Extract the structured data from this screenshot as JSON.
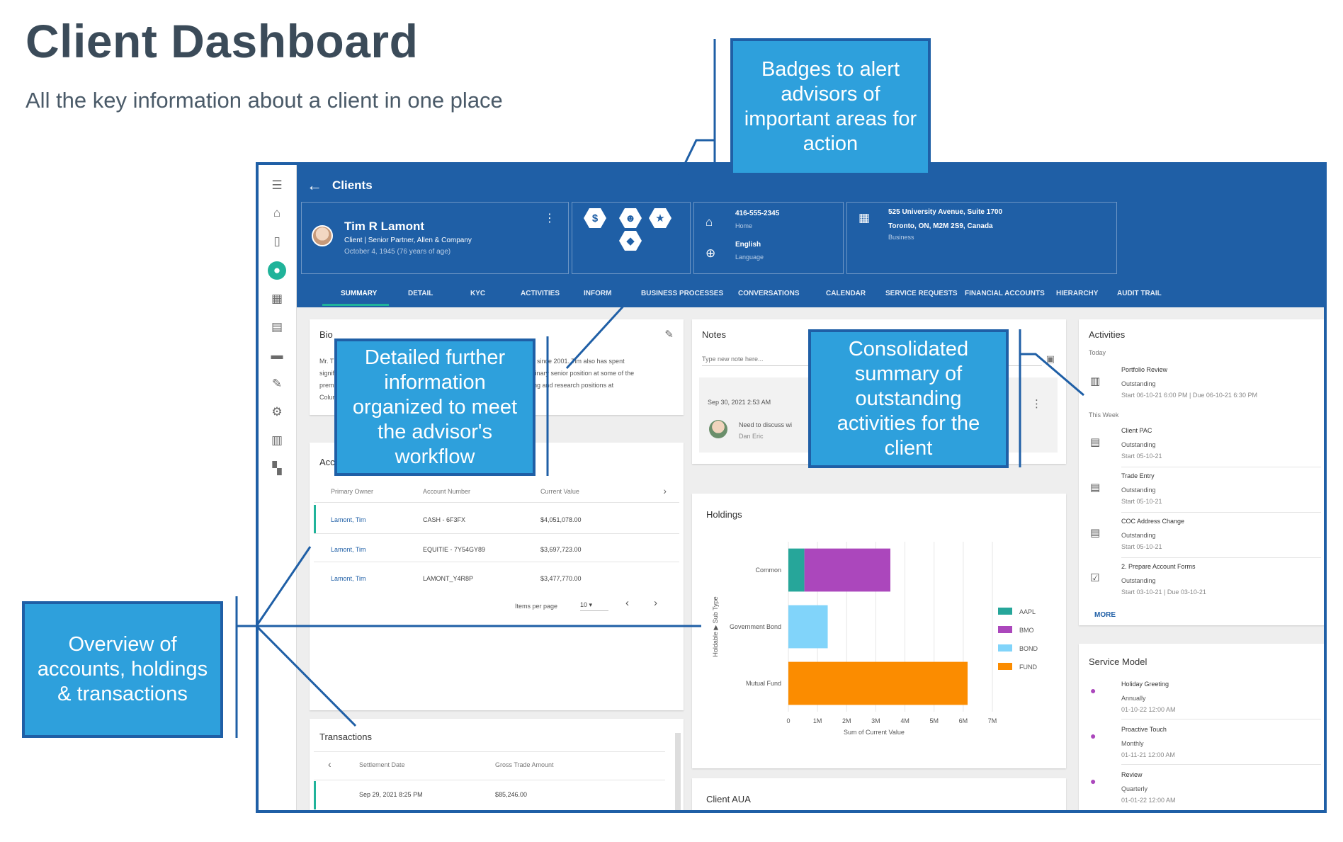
{
  "page": {
    "title": "Client Dashboard",
    "subtitle": "All the key information about a client in one place"
  },
  "app": {
    "back_label": "Clients",
    "rail_icons": [
      "menu-icon",
      "home-icon",
      "devices-icon",
      "client-icon",
      "calendar-icon",
      "clipboard-icon",
      "folder-icon",
      "wrench-icon",
      "gear-icon",
      "report-icon",
      "dashboard-icon"
    ],
    "client": {
      "name": "Tim R Lamont",
      "role": "Client | Senior Partner, Allen & Company",
      "dob": "October 4, 1945 (76 years of age)"
    },
    "badges": [
      "dollar-badge-icon",
      "advisor-badge-icon",
      "star-badge-icon",
      "shield-badge-icon"
    ],
    "contact": {
      "phone": "416-555-2345",
      "phone_type": "Home",
      "language": "English",
      "language_label": "Language"
    },
    "address": {
      "line1": "525 University Avenue, Suite 1700",
      "line2": "Toronto, ON, M2M 2S9, Canada",
      "type": "Business"
    },
    "tabs": [
      "SUMMARY",
      "DETAIL",
      "KYC",
      "ACTIVITIES",
      "INFORM",
      "BUSINESS PROCESSES",
      "CONVERSATIONS",
      "CALENDAR",
      "SERVICE REQUESTS",
      "FINANCIAL ACCOUNTS",
      "HIERARCHY",
      "AUDIT TRAIL"
    ],
    "bio": {
      "title": "Bio",
      "line1_start": "Mr. T",
      "line1_end": "y since 2001. Tim also has spent",
      "line2_start": "signif",
      "line2_end": "sinary senior position at some of the",
      "line3_start": "prem",
      "line3_end": "ing and research positions at",
      "line4_start": "Colur"
    },
    "accounts": {
      "title_fragment": "Acc",
      "headers": [
        "Primary Owner",
        "Account Number",
        "Current Value"
      ],
      "rows": [
        {
          "owner": "Lamont, Tim",
          "number": "CASH - 6F3FX",
          "value": "$4,051,078.00"
        },
        {
          "owner": "Lamont, Tim",
          "number": "EQUITIE - 7Y54GY89",
          "value": "$3,697,723.00"
        },
        {
          "owner": "Lamont, Tim",
          "number": "LAMONT_Y4R8P",
          "value": "$3,477,770.00"
        }
      ],
      "items_per_page_label": "Items per page",
      "items_per_page": "10"
    },
    "transactions": {
      "title": "Transactions",
      "headers": [
        "Settlement Date",
        "Gross Trade Amount"
      ],
      "rows": [
        {
          "date": "Sep 29, 2021 8:25 PM",
          "amount": "$85,246.00"
        }
      ]
    },
    "notes": {
      "title": "Notes",
      "placeholder": "Type new note here...",
      "note_date": "Sep 30, 2021 2:53 AM",
      "note_text": "Need to discuss wi",
      "note_author": "Dan Eric"
    },
    "holdings": {
      "title": "Holdings"
    },
    "client_aua": {
      "title": "Client AUA"
    },
    "activities": {
      "title": "Activities",
      "today_label": "Today",
      "week_label": "This Week",
      "items": [
        {
          "icon": "chart-task-icon",
          "title": "Portfolio Review",
          "status": "Outstanding",
          "dates": "Start 06-10-21 6:00 PM | Due 06-10-21 6:30 PM"
        },
        {
          "icon": "clipboard-task-icon",
          "title": "Client PAC",
          "status": "Outstanding",
          "dates": "Start 05-10-21"
        },
        {
          "icon": "clipboard-task-icon",
          "title": "Trade Entry",
          "status": "Outstanding",
          "dates": "Start 05-10-21"
        },
        {
          "icon": "clipboard-task-icon",
          "title": "COC Address Change",
          "status": "Outstanding",
          "dates": "Start 05-10-21"
        },
        {
          "icon": "check-task-icon",
          "title": "2. Prepare Account Forms",
          "status": "Outstanding",
          "dates": "Start 03-10-21 | Due 03-10-21"
        }
      ],
      "more_label": "MORE"
    },
    "service_model": {
      "title": "Service Model",
      "items": [
        {
          "title": "Holiday Greeting",
          "freq": "Annually",
          "date": "01-10-22 12:00 AM"
        },
        {
          "title": "Proactive Touch",
          "freq": "Monthly",
          "date": "01-11-21 12:00 AM"
        },
        {
          "title": "Review",
          "freq": "Quarterly",
          "date": "01-01-22 12:00 AM"
        }
      ]
    }
  },
  "chart_data": {
    "type": "bar",
    "orientation": "horizontal",
    "stacked": true,
    "title": "Holdings",
    "xlabel": "Sum of Current Value",
    "ylabel": "Holdable ▶ Sub Type",
    "categories": [
      "Common",
      "Government Bond",
      "Mutual Fund"
    ],
    "x_ticks": [
      "0",
      "1M",
      "2M",
      "3M",
      "4M",
      "5M",
      "6M",
      "7M"
    ],
    "xlim": [
      0,
      7000000
    ],
    "series": [
      {
        "name": "AAPL",
        "color": "#26a69a",
        "values": [
          550000,
          0,
          0
        ]
      },
      {
        "name": "BMO",
        "color": "#ab47bc",
        "values": [
          2950000,
          0,
          0
        ]
      },
      {
        "name": "BOND",
        "color": "#81d4fa",
        "values": [
          0,
          1350000,
          0
        ]
      },
      {
        "name": "FUND",
        "color": "#fb8c00",
        "values": [
          0,
          0,
          6150000
        ]
      }
    ],
    "legend": "right",
    "grid": true
  },
  "callouts": {
    "badges": "Badges to alert advisors of important areas for action",
    "detailed": "Detailed further information organized to meet the advisor's workflow",
    "activities": "Consolidated summary of outstanding activities for the client",
    "overview": "Overview of accounts, holdings & transactions"
  },
  "colors": {
    "primary": "#1f5fa6",
    "accent": "#20b39a",
    "callout": "#2ea0dc"
  }
}
